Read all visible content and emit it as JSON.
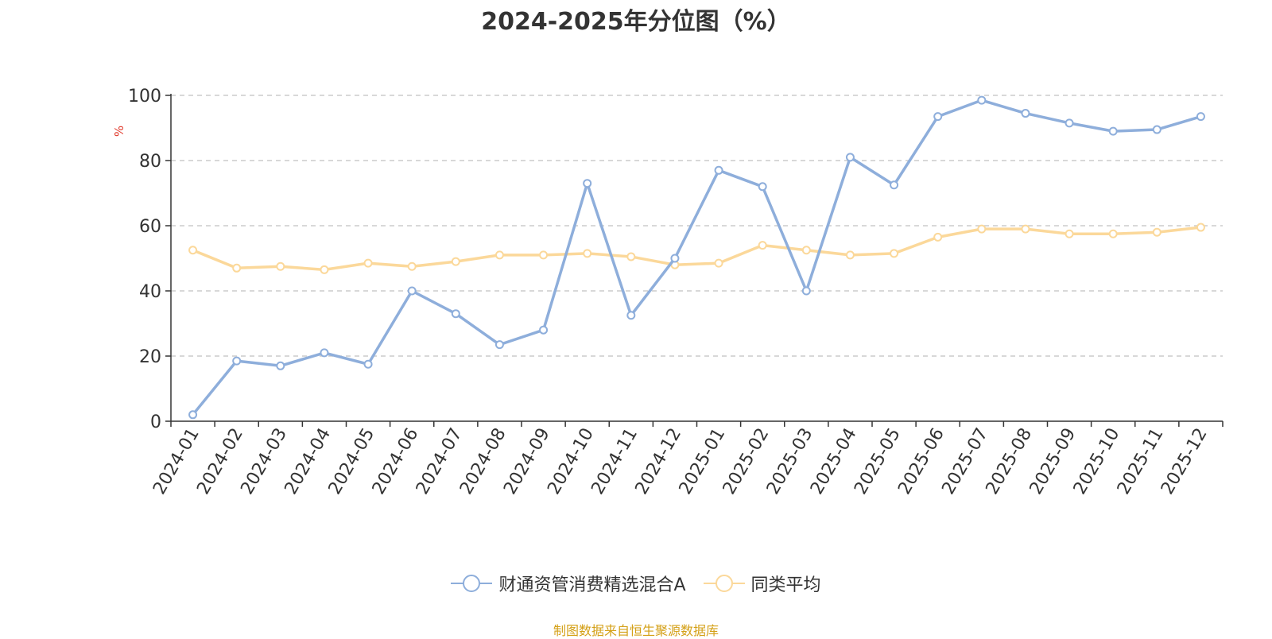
{
  "chart_data": {
    "type": "line",
    "title": "2024-2025年分位图（%）",
    "ylabel": "%",
    "xlabel": "",
    "ylim": [
      0,
      100
    ],
    "yticks": [
      0,
      20,
      40,
      60,
      80,
      100
    ],
    "grid": true,
    "legend_position": "bottom",
    "categories": [
      "2024-01",
      "2024-02",
      "2024-03",
      "2024-04",
      "2024-05",
      "2024-06",
      "2024-07",
      "2024-08",
      "2024-09",
      "2024-10",
      "2024-11",
      "2024-12",
      "2025-01",
      "2025-02",
      "2025-03",
      "2025-04",
      "2025-05",
      "2025-06",
      "2025-07",
      "2025-08",
      "2025-09",
      "2025-10",
      "2025-11",
      "2025-12"
    ],
    "series": [
      {
        "name": "财通资管消费精选混合A",
        "color": "#8eaedb",
        "values": [
          2,
          18.5,
          17,
          21,
          17.5,
          40,
          33,
          23.5,
          28,
          73,
          32.5,
          50,
          77,
          72,
          40,
          81,
          72.5,
          93.5,
          98.5,
          94.5,
          91.5,
          89,
          89.5,
          93.5
        ]
      },
      {
        "name": "同类平均",
        "color": "#fbd89a",
        "values": [
          52.5,
          47,
          47.5,
          46.5,
          48.5,
          47.5,
          49,
          51,
          51,
          51.5,
          50.5,
          48,
          48.5,
          54,
          52.5,
          51,
          51.5,
          56.5,
          59,
          59,
          57.5,
          57.5,
          58,
          59.5
        ]
      }
    ]
  },
  "source_note": "制图数据来自恒生聚源数据库",
  "colors": {
    "axis": "#333333",
    "grid": "#cccccc",
    "unit_label": "#e0392b",
    "source_note": "#d4a017"
  }
}
